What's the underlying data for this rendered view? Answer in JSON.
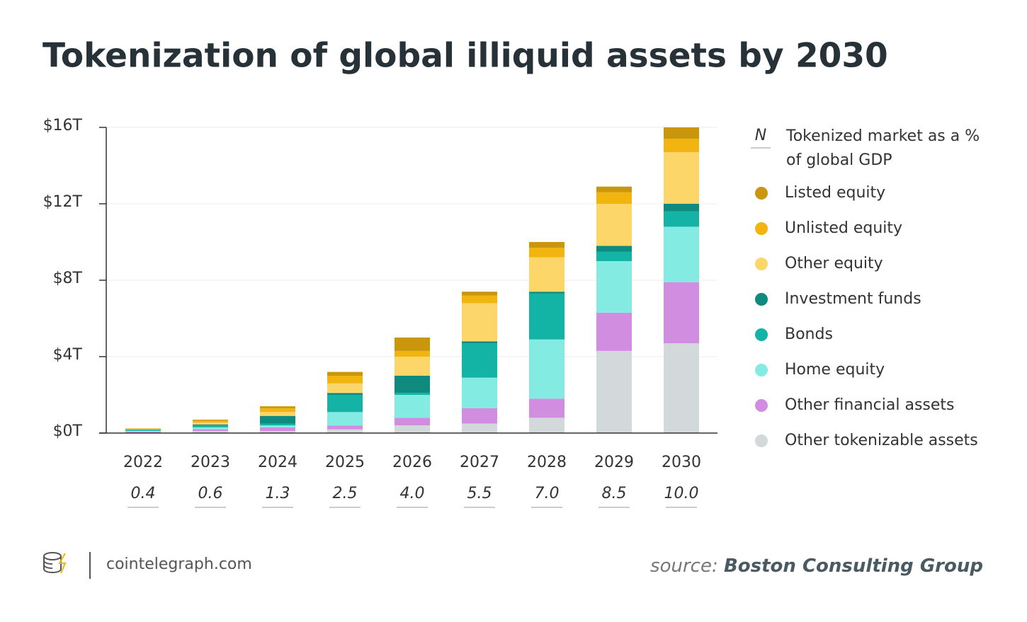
{
  "chart_data": {
    "type": "stacked_bar",
    "title": "Tokenization of global illiquid assets by 2030",
    "categories": [
      "2022",
      "2023",
      "2024",
      "2025",
      "2026",
      "2027",
      "2028",
      "2029",
      "2030"
    ],
    "series": [
      {
        "name": "Listed equity",
        "color": "#c9960c",
        "values": [
          0.02,
          0.05,
          0.1,
          0.2,
          0.7,
          0.2,
          0.3,
          0.3,
          0.6
        ]
      },
      {
        "name": "Unlisted equity",
        "color": "#f2b40f",
        "values": [
          0.02,
          0.1,
          0.2,
          0.4,
          0.3,
          0.4,
          0.5,
          0.6,
          0.7
        ]
      },
      {
        "name": "Other equity",
        "color": "#fdd66a",
        "values": [
          0.02,
          0.1,
          0.2,
          0.5,
          1.0,
          2.0,
          1.8,
          2.2,
          2.7
        ]
      },
      {
        "name": "Investment funds",
        "color": "#0e8a7e",
        "values": [
          0.02,
          0.05,
          0.4,
          0.1,
          0.9,
          0.1,
          0.1,
          0.3,
          0.4
        ]
      },
      {
        "name": "Bonds",
        "color": "#13b3a6",
        "values": [
          0.05,
          0.1,
          0.1,
          0.9,
          0.1,
          1.8,
          2.4,
          0.5,
          0.8
        ]
      },
      {
        "name": "Home equity",
        "color": "#84ebe3",
        "values": [
          0.05,
          0.1,
          0.1,
          0.7,
          1.2,
          1.6,
          3.1,
          2.7,
          2.9
        ]
      },
      {
        "name": "Other financial assets",
        "color": "#d18ee0",
        "values": [
          0.05,
          0.1,
          0.2,
          0.2,
          0.4,
          0.8,
          1.0,
          2.0,
          3.2
        ]
      },
      {
        "name": "Other tokenizable assets",
        "color": "#d3d8da",
        "values": [
          0.02,
          0.1,
          0.1,
          0.2,
          0.4,
          0.5,
          0.8,
          4.3,
          4.7
        ]
      }
    ],
    "gdp_share": {
      "symbol": "N",
      "name": "Tokenized market as a % of global GDP",
      "values": [
        0.4,
        0.6,
        1.3,
        2.5,
        4.0,
        5.5,
        7.0,
        8.5,
        10.0
      ],
      "value_labels": [
        "0.4",
        "0.6",
        "1.3",
        "2.5",
        "4.0",
        "5.5",
        "7.0",
        "8.5",
        "10.0"
      ]
    },
    "ylim": [
      0,
      16
    ],
    "yticks": [
      {
        "value": 0,
        "label": "$0T"
      },
      {
        "value": 4,
        "label": "$4T"
      },
      {
        "value": 8,
        "label": "$8T"
      },
      {
        "value": 12,
        "label": "$12T"
      },
      {
        "value": 16,
        "label": "$16T"
      }
    ],
    "grid": true
  },
  "footer": {
    "site": "cointelegraph.com",
    "source_prefix": "source:",
    "source": "Boston Consulting Group"
  }
}
